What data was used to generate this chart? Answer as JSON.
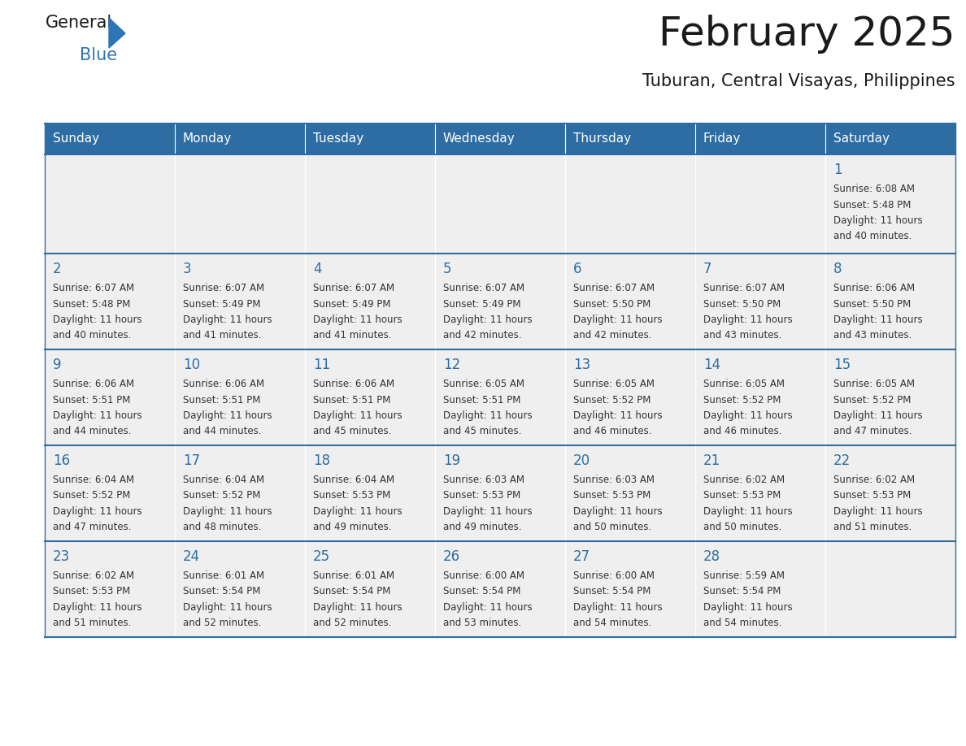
{
  "title": "February 2025",
  "subtitle": "Tuburan, Central Visayas, Philippines",
  "days_of_week": [
    "Sunday",
    "Monday",
    "Tuesday",
    "Wednesday",
    "Thursday",
    "Friday",
    "Saturday"
  ],
  "header_bg": "#2E6DA4",
  "header_text": "#FFFFFF",
  "cell_bg": "#EFEFEF",
  "cell_bg_white": "#FFFFFF",
  "day_number_color": "#2E6DA4",
  "text_color": "#333333",
  "title_color": "#1a1a1a",
  "logo_general_color": "#1a1a1a",
  "logo_blue_color": "#2E75B6",
  "row_line_color": "#2E6DA4",
  "calendar_data": [
    {
      "week": 0,
      "days": [
        {
          "day": null
        },
        {
          "day": null
        },
        {
          "day": null
        },
        {
          "day": null
        },
        {
          "day": null
        },
        {
          "day": null
        },
        {
          "day": 1,
          "sunrise": "6:08 AM",
          "sunset": "5:48 PM",
          "daylight_h": "11 hours",
          "daylight_m": "and 40 minutes."
        }
      ]
    },
    {
      "week": 1,
      "days": [
        {
          "day": 2,
          "sunrise": "6:07 AM",
          "sunset": "5:48 PM",
          "daylight_h": "11 hours",
          "daylight_m": "and 40 minutes."
        },
        {
          "day": 3,
          "sunrise": "6:07 AM",
          "sunset": "5:49 PM",
          "daylight_h": "11 hours",
          "daylight_m": "and 41 minutes."
        },
        {
          "day": 4,
          "sunrise": "6:07 AM",
          "sunset": "5:49 PM",
          "daylight_h": "11 hours",
          "daylight_m": "and 41 minutes."
        },
        {
          "day": 5,
          "sunrise": "6:07 AM",
          "sunset": "5:49 PM",
          "daylight_h": "11 hours",
          "daylight_m": "and 42 minutes."
        },
        {
          "day": 6,
          "sunrise": "6:07 AM",
          "sunset": "5:50 PM",
          "daylight_h": "11 hours",
          "daylight_m": "and 42 minutes."
        },
        {
          "day": 7,
          "sunrise": "6:07 AM",
          "sunset": "5:50 PM",
          "daylight_h": "11 hours",
          "daylight_m": "and 43 minutes."
        },
        {
          "day": 8,
          "sunrise": "6:06 AM",
          "sunset": "5:50 PM",
          "daylight_h": "11 hours",
          "daylight_m": "and 43 minutes."
        }
      ]
    },
    {
      "week": 2,
      "days": [
        {
          "day": 9,
          "sunrise": "6:06 AM",
          "sunset": "5:51 PM",
          "daylight_h": "11 hours",
          "daylight_m": "and 44 minutes."
        },
        {
          "day": 10,
          "sunrise": "6:06 AM",
          "sunset": "5:51 PM",
          "daylight_h": "11 hours",
          "daylight_m": "and 44 minutes."
        },
        {
          "day": 11,
          "sunrise": "6:06 AM",
          "sunset": "5:51 PM",
          "daylight_h": "11 hours",
          "daylight_m": "and 45 minutes."
        },
        {
          "day": 12,
          "sunrise": "6:05 AM",
          "sunset": "5:51 PM",
          "daylight_h": "11 hours",
          "daylight_m": "and 45 minutes."
        },
        {
          "day": 13,
          "sunrise": "6:05 AM",
          "sunset": "5:52 PM",
          "daylight_h": "11 hours",
          "daylight_m": "and 46 minutes."
        },
        {
          "day": 14,
          "sunrise": "6:05 AM",
          "sunset": "5:52 PM",
          "daylight_h": "11 hours",
          "daylight_m": "and 46 minutes."
        },
        {
          "day": 15,
          "sunrise": "6:05 AM",
          "sunset": "5:52 PM",
          "daylight_h": "11 hours",
          "daylight_m": "and 47 minutes."
        }
      ]
    },
    {
      "week": 3,
      "days": [
        {
          "day": 16,
          "sunrise": "6:04 AM",
          "sunset": "5:52 PM",
          "daylight_h": "11 hours",
          "daylight_m": "and 47 minutes."
        },
        {
          "day": 17,
          "sunrise": "6:04 AM",
          "sunset": "5:52 PM",
          "daylight_h": "11 hours",
          "daylight_m": "and 48 minutes."
        },
        {
          "day": 18,
          "sunrise": "6:04 AM",
          "sunset": "5:53 PM",
          "daylight_h": "11 hours",
          "daylight_m": "and 49 minutes."
        },
        {
          "day": 19,
          "sunrise": "6:03 AM",
          "sunset": "5:53 PM",
          "daylight_h": "11 hours",
          "daylight_m": "and 49 minutes."
        },
        {
          "day": 20,
          "sunrise": "6:03 AM",
          "sunset": "5:53 PM",
          "daylight_h": "11 hours",
          "daylight_m": "and 50 minutes."
        },
        {
          "day": 21,
          "sunrise": "6:02 AM",
          "sunset": "5:53 PM",
          "daylight_h": "11 hours",
          "daylight_m": "and 50 minutes."
        },
        {
          "day": 22,
          "sunrise": "6:02 AM",
          "sunset": "5:53 PM",
          "daylight_h": "11 hours",
          "daylight_m": "and 51 minutes."
        }
      ]
    },
    {
      "week": 4,
      "days": [
        {
          "day": 23,
          "sunrise": "6:02 AM",
          "sunset": "5:53 PM",
          "daylight_h": "11 hours",
          "daylight_m": "and 51 minutes."
        },
        {
          "day": 24,
          "sunrise": "6:01 AM",
          "sunset": "5:54 PM",
          "daylight_h": "11 hours",
          "daylight_m": "and 52 minutes."
        },
        {
          "day": 25,
          "sunrise": "6:01 AM",
          "sunset": "5:54 PM",
          "daylight_h": "11 hours",
          "daylight_m": "and 52 minutes."
        },
        {
          "day": 26,
          "sunrise": "6:00 AM",
          "sunset": "5:54 PM",
          "daylight_h": "11 hours",
          "daylight_m": "and 53 minutes."
        },
        {
          "day": 27,
          "sunrise": "6:00 AM",
          "sunset": "5:54 PM",
          "daylight_h": "11 hours",
          "daylight_m": "and 54 minutes."
        },
        {
          "day": 28,
          "sunrise": "5:59 AM",
          "sunset": "5:54 PM",
          "daylight_h": "11 hours",
          "daylight_m": "and 54 minutes."
        },
        {
          "day": null
        }
      ]
    }
  ]
}
